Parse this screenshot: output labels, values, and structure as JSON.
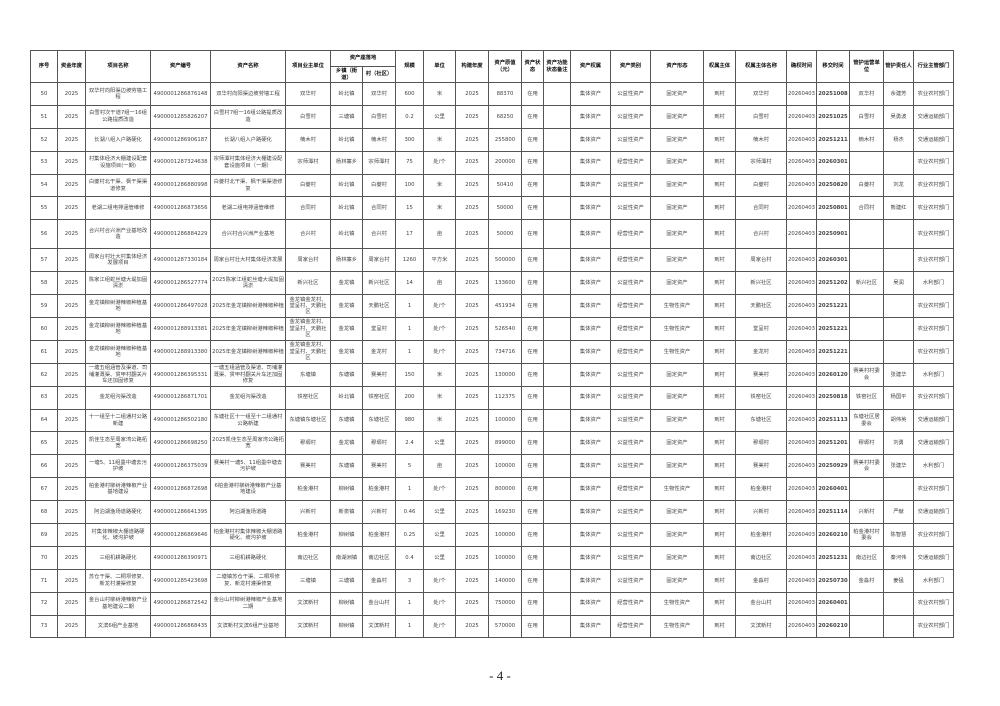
{
  "table": {
    "headers": {
      "seq": "序号",
      "fund_year": "资金年度",
      "project_name": "项目名称",
      "asset_code": "资产编号",
      "asset_name": "资产名称",
      "owner_unit": "项目业主单位",
      "location": "资产座落地",
      "town": "乡镇（街道）",
      "village": "村（社区）",
      "scale": "规模",
      "unit": "单位",
      "build_year": "构建年度",
      "original_value": "资产原值（元）",
      "status": "资产状态",
      "function_note": "资产功能状态备注",
      "ownership": "资产权属",
      "category": "资产类别",
      "form": "资产形态",
      "owner_subject": "权属主体",
      "owner_subject_name": "权属主体名称",
      "confirm_time": "确权时间",
      "handover_time": "移交时间",
      "maintenance_unit": "管护运营单位",
      "responsible_person": "管护责任人",
      "department": "行业主管部门"
    },
    "rows": [
      [
        "50",
        "2025",
        "双华村向阳渠边坡劳墙工程",
        "4900001286876148",
        "双华村向阳渠边坡劳墙工程",
        "双华村",
        "岭北镇",
        "双华村",
        "600",
        "米",
        "2025",
        "88370",
        "在用",
        "",
        "集体资产",
        "公益性资产",
        "固定资产",
        "到村",
        "双华村",
        "20260403",
        "20251008",
        "双华村",
        "余建芳",
        "农业农村部门"
      ],
      [
        "51",
        "2025",
        "白雪村次干道7组一16组公路提质改造",
        "4900001285826207",
        "白雪村7组一16组公路提质改造",
        "白雪村",
        "三塘镇",
        "白雪村",
        "0.2",
        "公里",
        "2025",
        "68250",
        "在用",
        "",
        "集体资产",
        "公益性资产",
        "固定资产",
        "到村",
        "白雪村",
        "20260403",
        "20251025",
        "白雪村",
        "吴勇波",
        "交通运输部门"
      ],
      [
        "52",
        "2025",
        "长湖八组入户路硬化",
        "4900001286906187",
        "长湖八组入户路硬化",
        "楠木村",
        "岭北镇",
        "楠木村",
        "300",
        "米",
        "2025",
        "255800",
        "在用",
        "",
        "集体资产",
        "公益性资产",
        "固定资产",
        "到村",
        "楠木村",
        "20260403",
        "20251211",
        "楠木村",
        "杨杰",
        "交通运输部门"
      ],
      [
        "53",
        "2025",
        "村集体经济大棚建设配套设施项目(一期)",
        "4900001287324638",
        "宗师潭村集体经济大棚建设配套设施项目（一期）",
        "宗师潭村",
        "杨林寨乡",
        "宗师潭村",
        "75",
        "处/个",
        "2025",
        "200000",
        "在用",
        "",
        "集体资产",
        "经营性资产",
        "固定资产",
        "到村",
        "宗师潭村",
        "20260403",
        "20260301",
        "",
        "",
        "农业农村部门"
      ],
      [
        "54",
        "2025",
        "白夔村北干渠、枫干渠渠道修复",
        "4900001286880998",
        "白夔村北干渠、枫干渠渠道修复",
        "白夔村",
        "岭北镇",
        "白夔村",
        "100",
        "米",
        "2025",
        "50410",
        "在用",
        "",
        "集体资产",
        "公益性资产",
        "固定资产",
        "到村",
        "白夔村",
        "20260403",
        "20250820",
        "白夔村",
        "刘龙",
        "农业农村部门"
      ],
      [
        "55",
        "2025",
        "老湖二组电排涵管维修",
        "4900001286873656",
        "老湖二组电排涵管维修",
        "合同村",
        "岭北镇",
        "合同村",
        "15",
        "米",
        "2025",
        "50000",
        "在用",
        "",
        "集体资产",
        "公益性资产",
        "固定资产",
        "到村",
        "合同村",
        "20260403",
        "20250801",
        "合同村",
        "熊建红",
        "农业农村部门"
      ],
      [
        "56",
        "2025",
        "合兴村合兴洲产业基地改造",
        "4900001286884229",
        "合兴村合兴洲产业基地",
        "合兴村",
        "岭北镇",
        "合兴村",
        "17",
        "亩",
        "2025",
        "50000",
        "在用",
        "",
        "集体资产",
        "经营性资产",
        "固定资产",
        "到村",
        "合兴村",
        "20260403",
        "20250901",
        "",
        "",
        "农业农村部门"
      ],
      [
        "57",
        "2025",
        "周家台村壮大村集体经济发展项目",
        "4900001287330184",
        "周家台村壮大村集体经济发展",
        "周家台村",
        "杨林寨乡",
        "周家台村",
        "1260",
        "平方米",
        "2025",
        "500000",
        "在用",
        "",
        "集体资产",
        "经营性资产",
        "固定资产",
        "到村",
        "周家台村",
        "20260403",
        "20260301",
        "",
        "",
        "农业农村部门"
      ],
      [
        "58",
        "2025",
        "陈家江组蛇丝塘大堤加固清淤",
        "4900001286527774",
        "2025陈家江组蛇丝塘大堤加固清淤",
        "新兴社区",
        "金龙镇",
        "新兴社区",
        "14",
        "亩",
        "2025",
        "133600",
        "在用",
        "",
        "集体资产",
        "公益性资产",
        "固定资产",
        "到村",
        "新兴社区",
        "20260403",
        "20251202",
        "新兴社区",
        "吴润",
        "水利部门"
      ],
      [
        "59",
        "2025",
        "金龙镇柳树港辣椒种植基地",
        "4900001286497028",
        "2025年金龙镇柳树港辣椒种植",
        "金龙镇金龙村、堂呈村、天鹏社区",
        "金龙镇",
        "天鹏社区",
        "1",
        "处/个",
        "2025",
        "451934",
        "在用",
        "",
        "集体资产",
        "经营性资产",
        "生物性资产",
        "到村",
        "天鹏社区",
        "20260403",
        "20251221",
        "",
        "",
        "农业农村部门"
      ],
      [
        "60",
        "2025",
        "金龙镇柳树港辣椒种植基地",
        "4900001288913381",
        "2025年金龙镇柳树港辣椒种植",
        "金龙镇金龙村、堂呈村、天鹏社区",
        "金龙镇",
        "堂呈村",
        "1",
        "处/个",
        "2025",
        "526540",
        "在用",
        "",
        "集体资产",
        "经营性资产",
        "生物性资产",
        "到村",
        "堂呈村",
        "20260403",
        "20251221",
        "",
        "",
        "农业农村部门"
      ],
      [
        "61",
        "2025",
        "金龙镇柳树港辣椒种植基地",
        "4900001288913380",
        "2025年金龙镇柳树港辣椒种植",
        "金龙镇金龙村、堂呈村、天鹏社区",
        "金龙镇",
        "金龙村",
        "1",
        "处/个",
        "2025",
        "734716",
        "在用",
        "",
        "集体资产",
        "经营性资产",
        "生物性资产",
        "到村",
        "金龙村",
        "20260403",
        "20251221",
        "",
        "",
        "农业农村部门"
      ],
      [
        "62",
        "2025",
        "一塘五组涵管及渠道、司埔灌溉渠、贯甲村翻关片车还加固修复",
        "4900001286395331",
        "一塘五组涵管及渠道、司埔灌溉渠、贯甲村翻关片车还加固修复",
        "东塘镇",
        "东塘镇",
        "赛美村",
        "150",
        "米",
        "2025",
        "130000",
        "在用",
        "",
        "集体资产",
        "公益性资产",
        "固定资产",
        "到村",
        "赛美村",
        "20260403",
        "20260120",
        "赛美村村委会",
        "张建华",
        "水利部门"
      ],
      [
        "63",
        "2025",
        "金龙组沟渠改造",
        "4900001286871701",
        "金龙组沟渠改造",
        "铁窑社区",
        "岭北镇",
        "铁窑社区",
        "200",
        "米",
        "2025",
        "112375",
        "在用",
        "",
        "集体资产",
        "公益性资产",
        "固定资产",
        "到村",
        "铁窑社区",
        "20260403",
        "20250818",
        "铁窑社区",
        "杨国平",
        "农业农村部门"
      ],
      [
        "64",
        "2025",
        "十一组至十二组通村公路新建",
        "4900001286502180",
        "东塘社区十一组至十二组通村公路新建",
        "东塘镇东塘社区",
        "东塘镇",
        "东塘社区",
        "980",
        "米",
        "2025",
        "100000",
        "在用",
        "",
        "集体资产",
        "公益性资产",
        "固定资产",
        "到村",
        "东塘社区",
        "20260403",
        "20251113",
        "东塘社区居委会",
        "胡伟英",
        "交通运输部门"
      ],
      [
        "65",
        "2025",
        "凯佳生态至周家湾公路拓宽",
        "4900001286698250",
        "2025凯佳生态至周家湾公路拓宽",
        "穆塬村",
        "金龙镇",
        "穆塬村",
        "2.4",
        "公里",
        "2025",
        "899000",
        "在用",
        "",
        "集体资产",
        "公益性资产",
        "固定资产",
        "到村",
        "穆塬村",
        "20260403",
        "20251201",
        "穆塬村",
        "刘勇",
        "交通运输部门"
      ],
      [
        "66",
        "2025",
        "一塘5、11组墨中塘去污护坡",
        "4900001286375039",
        "赛美村一塘5、11组墨中塘去污护坡",
        "赛美村",
        "东塘镇",
        "赛美村",
        "5",
        "亩",
        "2025",
        "100000",
        "在用",
        "",
        "集体资产",
        "公益性资产",
        "固定资产",
        "到村",
        "赛美村",
        "20260403",
        "20250929",
        "赛美村村委会",
        "张建华",
        "水利部门"
      ],
      [
        "67",
        "2025",
        "柏金港村柳树港辣椒产业基地建设",
        "4900001286872698",
        "6柏金港村柳树港辣椒产业基地建设",
        "柏金港村",
        "柳树镇",
        "柏金港村",
        "1",
        "处/个",
        "2025",
        "800000",
        "在用",
        "",
        "集体资产",
        "经营性资产",
        "生物性资产",
        "到村",
        "柏金港村",
        "20260403",
        "20260401",
        "",
        "",
        "农业农村部门"
      ],
      [
        "68",
        "2025",
        "阿泊湖渔场道路硬化",
        "4900001286641395",
        "阿泊湖渔场道路",
        "兴新村",
        "新泉镇",
        "兴新村",
        "0.46",
        "公里",
        "2025",
        "169230",
        "在用",
        "",
        "集体资产",
        "公益性资产",
        "固定资产",
        "到村",
        "兴新村",
        "20260403",
        "20251114",
        "兴新村",
        "严献",
        "交通运输部门"
      ],
      [
        "69",
        "2025",
        "村集体辣椒大棚道路硬化、坡沟护坡",
        "4900001286869646",
        "柏金港村村集体辣椒大棚道路硬化、坡沟护坡",
        "柏金港村",
        "柳树镇",
        "柏金港村",
        "0.25",
        "公里",
        "2025",
        "100000",
        "在用",
        "",
        "集体资产",
        "公益性资产",
        "固定资产",
        "到村",
        "柏金港村",
        "20260403",
        "20260210",
        "柏金港村村委会",
        "陈智慧",
        "农业农村部门"
      ],
      [
        "70",
        "2025",
        "三组机耕路硬化",
        "4900001286390971",
        "三组机耕路硬化",
        "南边社区",
        "南湖洲镇",
        "南边社区",
        "0.4",
        "公里",
        "2025",
        "100000",
        "在用",
        "",
        "集体资产",
        "公益性资产",
        "固定资产",
        "到村",
        "南边社区",
        "20260403",
        "20251231",
        "南边社区",
        "秦河伟",
        "交通运输部门"
      ],
      [
        "71",
        "2025",
        "苏仓干渠、二桐坝修复、新龙村灌渠修复",
        "4900001285423698",
        "二塘镇苏仓干渠、二桐坝修复、新龙村灌渠修复",
        "三塘镇",
        "三塘镇",
        "金淼村",
        "3",
        "处/个",
        "2025",
        "140000",
        "在用",
        "",
        "集体资产",
        "公益性资产",
        "固定资产",
        "到村",
        "金淼村",
        "20260403",
        "20250730",
        "金淼村",
        "姜猛",
        "水利部门"
      ],
      [
        "72",
        "2025",
        "金台山村柳树港辣椒产业基地建设二期",
        "4900001286872542",
        "金台山村柳树港辣椒产业基地二期",
        "文滨新村",
        "柳树镇",
        "金台山村",
        "1",
        "处/个",
        "2025",
        "750000",
        "在用",
        "",
        "集体资产",
        "经营性资产",
        "生物性资产",
        "到村",
        "金台山村",
        "20260403",
        "20260401",
        "",
        "",
        "农业农村部门"
      ],
      [
        "73",
        "2025",
        "文滨6组产业基地",
        "4900001286868435",
        "文滨新村文滨6组产业基地",
        "文滨新村",
        "柳树镇",
        "文滨新村",
        "1",
        "处/个",
        "2025",
        "570000",
        "在用",
        "",
        "集体资产",
        "经营性资产",
        "生物性资产",
        "到村",
        "文滨新村",
        "20260403",
        "20260210",
        "",
        "",
        "农业农村部门"
      ]
    ]
  },
  "page_number": "- 4 -"
}
